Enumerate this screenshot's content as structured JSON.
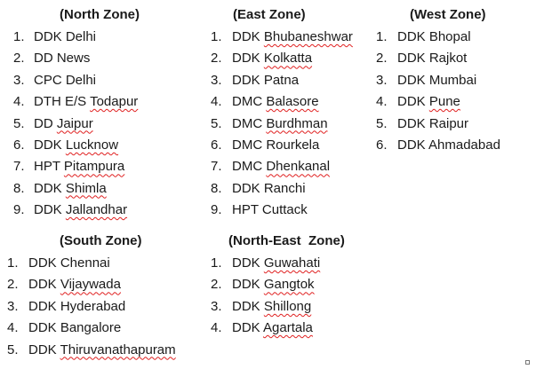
{
  "zones": [
    {
      "title": "(North Zone)",
      "items": [
        {
          "num": "1.",
          "parts": [
            "DDK Delhi"
          ]
        },
        {
          "num": "2.",
          "parts": [
            "DD News"
          ]
        },
        {
          "num": "3.",
          "parts": [
            "CPC Delhi"
          ]
        },
        {
          "num": "4.",
          "parts": [
            "DTH E/S ",
            "Todapur"
          ]
        },
        {
          "num": "5.",
          "parts": [
            "DD ",
            "Jaipur"
          ]
        },
        {
          "num": "6.",
          "parts": [
            "DDK ",
            "Lucknow"
          ]
        },
        {
          "num": "7.",
          "parts": [
            "HPT ",
            "Pitampura"
          ]
        },
        {
          "num": "8.",
          "parts": [
            "DDK ",
            "Shimla"
          ]
        },
        {
          "num": "9.",
          "parts": [
            "DDK ",
            "Jallandhar"
          ]
        }
      ]
    },
    {
      "title": "(East Zone)",
      "items": [
        {
          "num": "1.",
          "parts": [
            "DDK ",
            "Bhubaneshwar"
          ]
        },
        {
          "num": "2.",
          "parts": [
            "DDK ",
            "Kolkatta"
          ]
        },
        {
          "num": "3.",
          "parts": [
            "DDK Patna"
          ]
        },
        {
          "num": "4.",
          "parts": [
            "DMC ",
            "Balasore"
          ]
        },
        {
          "num": "5.",
          "parts": [
            "DMC ",
            "Burdhman"
          ]
        },
        {
          "num": "6.",
          "parts": [
            "DMC Rourkela"
          ]
        },
        {
          "num": "7.",
          "parts": [
            "DMC ",
            "Dhenkanal"
          ]
        },
        {
          "num": "8.",
          "parts": [
            "DDK Ranchi"
          ]
        },
        {
          "num": "9.",
          "parts": [
            "HPT Cuttack"
          ]
        }
      ]
    },
    {
      "title": "(West Zone)",
      "items": [
        {
          "num": "1.",
          "parts": [
            "DDK Bhopal"
          ]
        },
        {
          "num": "2.",
          "parts": [
            "DDK Rajkot"
          ]
        },
        {
          "num": "3.",
          "parts": [
            "DDK Mumbai"
          ]
        },
        {
          "num": "4.",
          "parts": [
            "DDK ",
            "Pune"
          ]
        },
        {
          "num": "5.",
          "parts": [
            "DDK Raipur"
          ]
        },
        {
          "num": "6.",
          "parts": [
            "DDK Ahmadabad"
          ]
        }
      ]
    },
    {
      "title": "(South Zone)",
      "items": [
        {
          "num": "1.",
          "parts": [
            "DDK Chennai"
          ]
        },
        {
          "num": "2.",
          "parts": [
            "DDK ",
            "Vijaywada"
          ]
        },
        {
          "num": "3.",
          "parts": [
            "DDK Hyderabad"
          ]
        },
        {
          "num": "4.",
          "parts": [
            "DDK Bangalore"
          ]
        },
        {
          "num": "5.",
          "parts": [
            "DDK ",
            "Thiruvanathapuram"
          ]
        }
      ]
    },
    {
      "title": "(North-East  Zone)",
      "items": [
        {
          "num": "1.",
          "parts": [
            "DDK ",
            "Guwahati"
          ]
        },
        {
          "num": "2.",
          "parts": [
            "DDK ",
            "Gangtok"
          ]
        },
        {
          "num": "3.",
          "parts": [
            "DDK ",
            "Shillong"
          ]
        },
        {
          "num": "4.",
          "parts": [
            "DDK ",
            "Agartala"
          ]
        }
      ]
    }
  ]
}
